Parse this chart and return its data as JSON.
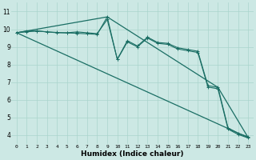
{
  "xlabel": "Humidex (Indice chaleur)",
  "bg_color": "#cce8e4",
  "grid_color": "#aad4cc",
  "line_color": "#1a6e64",
  "xlim": [
    -0.5,
    23.5
  ],
  "ylim": [
    3.5,
    11.5
  ],
  "xticks": [
    0,
    1,
    2,
    3,
    4,
    5,
    6,
    7,
    8,
    9,
    10,
    11,
    12,
    13,
    14,
    15,
    16,
    17,
    18,
    19,
    20,
    21,
    22,
    23
  ],
  "yticks": [
    4,
    5,
    6,
    7,
    8,
    9,
    10,
    11
  ],
  "series1_x": [
    0,
    1,
    2,
    3,
    4,
    5,
    6,
    7,
    8,
    9,
    10,
    11,
    12,
    13,
    14,
    15,
    16,
    17,
    18,
    19,
    20,
    21,
    22,
    23
  ],
  "series1_y": [
    9.8,
    9.9,
    9.9,
    9.85,
    9.8,
    9.8,
    9.85,
    9.8,
    9.75,
    10.55,
    8.3,
    9.35,
    9.05,
    9.55,
    9.25,
    9.2,
    8.95,
    8.85,
    8.75,
    6.8,
    6.7,
    4.4,
    4.1,
    3.9
  ],
  "series2_x": [
    0,
    1,
    2,
    3,
    4,
    5,
    6,
    7,
    8,
    9,
    10,
    11,
    12,
    13,
    14,
    15,
    16,
    17,
    18,
    19,
    20,
    21,
    22,
    23
  ],
  "series2_y": [
    9.8,
    9.85,
    9.9,
    9.85,
    9.82,
    9.79,
    9.77,
    9.74,
    9.71,
    10.7,
    8.28,
    9.28,
    9.0,
    9.5,
    9.2,
    9.14,
    8.88,
    8.78,
    8.68,
    6.72,
    6.62,
    4.33,
    4.03,
    3.83
  ],
  "series3_x": [
    0,
    9,
    20,
    23
  ],
  "series3_y": [
    9.8,
    10.7,
    6.7,
    3.85
  ],
  "series4_x": [
    0,
    23
  ],
  "series4_y": [
    9.8,
    3.85
  ]
}
